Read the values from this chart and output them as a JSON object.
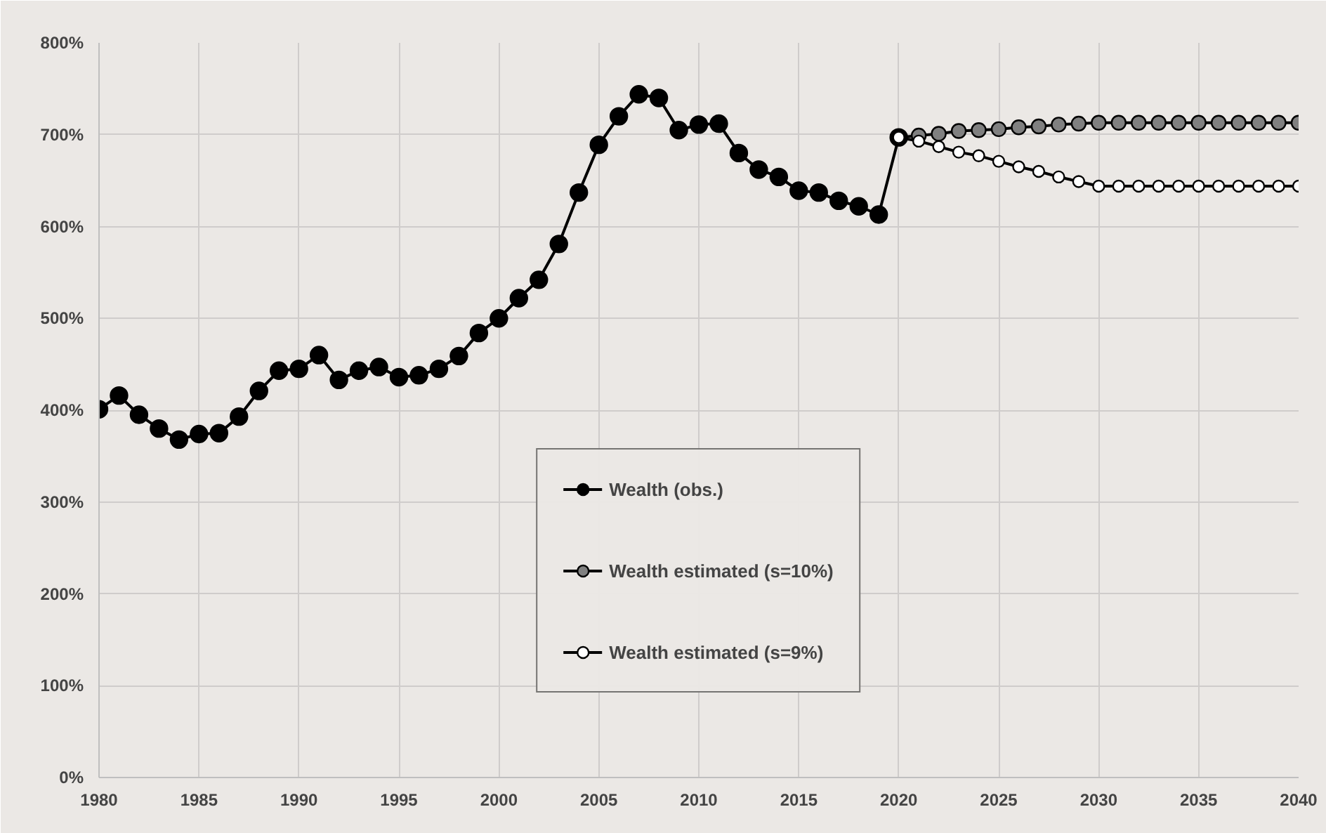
{
  "chart_data": {
    "type": "line",
    "marker": "circle",
    "grid": true,
    "legend": "bottom",
    "xlim": [
      1980,
      2040
    ],
    "xticks": [
      1980,
      1985,
      1990,
      1995,
      2000,
      2005,
      2010,
      2015,
      2020,
      2025,
      2030,
      2035,
      2040
    ],
    "ylim": [
      0,
      800
    ],
    "yticks": [
      {
        "value": 0,
        "label": "0%"
      },
      {
        "value": 100,
        "label": "100%"
      },
      {
        "value": 200,
        "label": "200%"
      },
      {
        "value": 300,
        "label": "300%"
      },
      {
        "value": 400,
        "label": "400%"
      },
      {
        "value": 500,
        "label": "500%"
      },
      {
        "value": 600,
        "label": "600%"
      },
      {
        "value": 700,
        "label": "700%"
      },
      {
        "value": 800,
        "label": "800%"
      }
    ],
    "series": [
      {
        "name": "Wealth (obs.)",
        "color": "#000000",
        "x": [
          1980,
          1981,
          1982,
          1983,
          1984,
          1985,
          1986,
          1987,
          1988,
          1989,
          1990,
          1991,
          1992,
          1993,
          1994,
          1995,
          1996,
          1997,
          1998,
          1999,
          2000,
          2001,
          2002,
          2003,
          2004,
          2005,
          2006,
          2007,
          2008,
          2009,
          2010,
          2011,
          2012,
          2013,
          2014,
          2015,
          2016,
          2017,
          2018,
          2019,
          2020
        ],
        "values": [
          401,
          416,
          395,
          380,
          368,
          374,
          375,
          393,
          421,
          443,
          445,
          460,
          433,
          443,
          447,
          436,
          438,
          445,
          459,
          484,
          500,
          522,
          542,
          581,
          637,
          689,
          720,
          744,
          740,
          705,
          711,
          712,
          680,
          662,
          654,
          639,
          637,
          628,
          622,
          613,
          697
        ]
      },
      {
        "name": "Wealth estimated (s=10%)",
        "color": "#808080",
        "x": [
          2020,
          2021,
          2022,
          2023,
          2024,
          2025,
          2026,
          2027,
          2028,
          2029,
          2030,
          2031,
          2032,
          2033,
          2034,
          2035,
          2036,
          2037,
          2038,
          2039,
          2040
        ],
        "values": [
          697,
          699,
          701,
          704,
          705,
          706,
          708,
          709,
          711,
          712,
          713,
          713,
          713,
          713,
          713,
          713,
          713,
          713,
          713,
          713,
          713
        ]
      },
      {
        "name": "Wealth estimated (s=9%)",
        "color": "#ffffff",
        "x": [
          2020,
          2021,
          2022,
          2023,
          2024,
          2025,
          2026,
          2027,
          2028,
          2029,
          2030,
          2031,
          2032,
          2033,
          2034,
          2035,
          2036,
          2037,
          2038,
          2039,
          2040
        ],
        "values": [
          697,
          693,
          687,
          681,
          677,
          671,
          665,
          660,
          654,
          649,
          644,
          644,
          644,
          644,
          644,
          644,
          644,
          644,
          644,
          644,
          644
        ]
      }
    ]
  }
}
